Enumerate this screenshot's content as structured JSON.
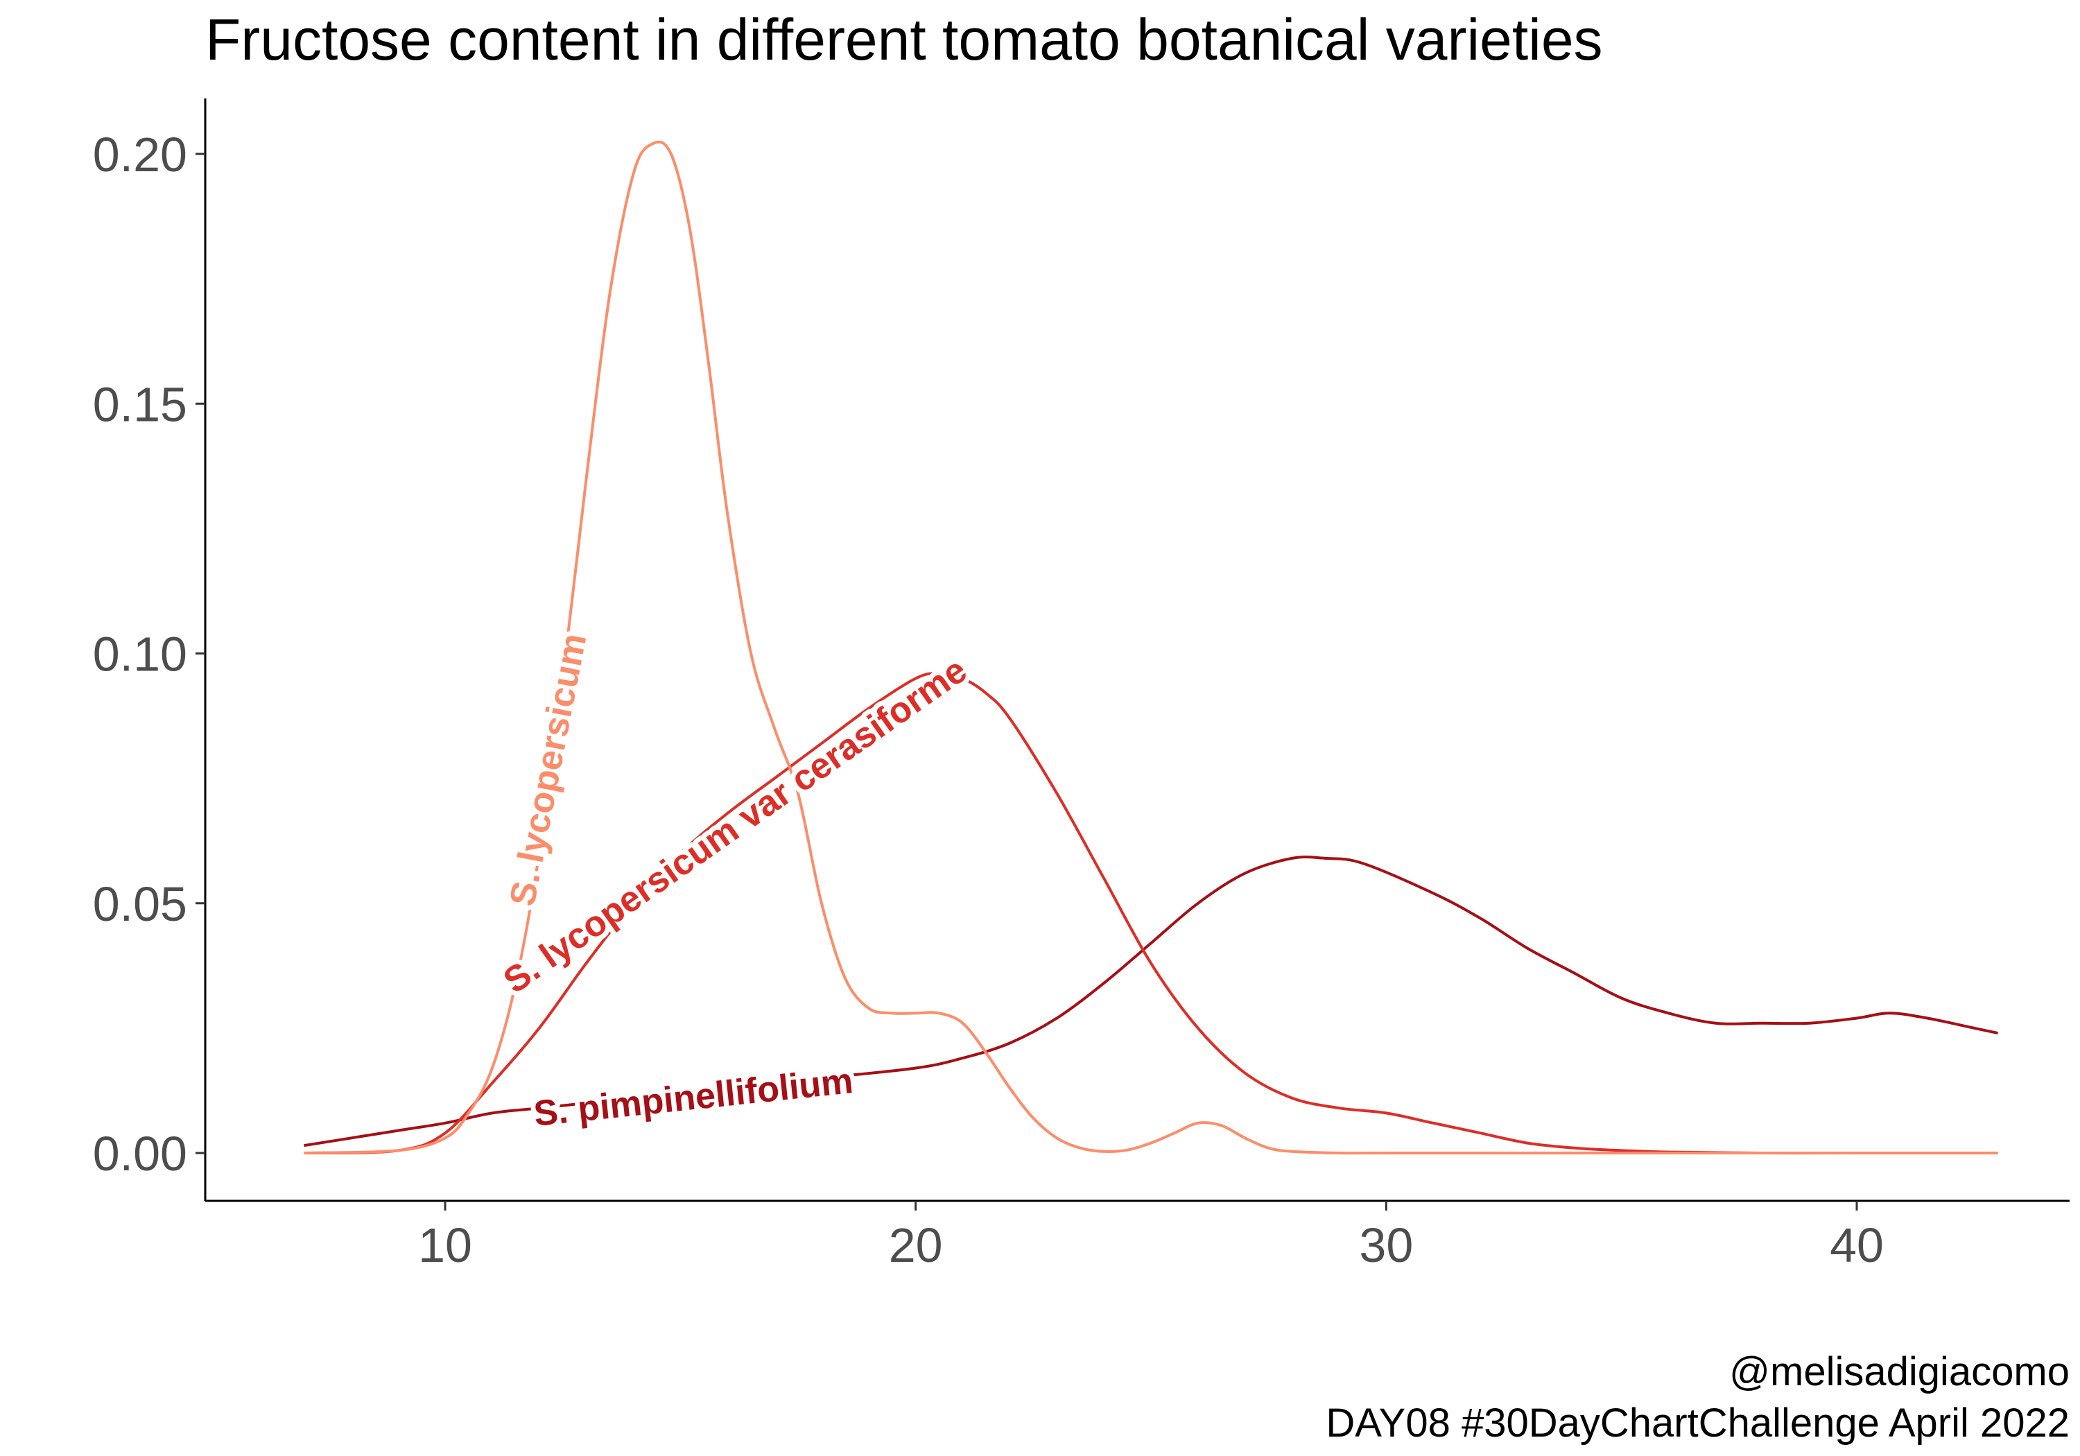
{
  "chart_data": {
    "type": "line",
    "title": "Fructose content in different tomato botanical varieties",
    "xlabel": "",
    "ylabel": "",
    "xlim": [
      5,
      45
    ],
    "ylim": [
      -0.01,
      0.21
    ],
    "x_ticks": [
      10,
      20,
      30,
      40
    ],
    "x_tick_labels": [
      "10",
      "20",
      "30",
      "40"
    ],
    "y_ticks": [
      0,
      0.05,
      0.1,
      0.15,
      0.2
    ],
    "y_tick_labels": [
      "0.00",
      "0.05",
      "0.10",
      "0.15",
      "0.20"
    ],
    "grid": false,
    "legend": "none (direct labels on curves)",
    "series": [
      {
        "name": "S. lycopersicum",
        "color": "#fc8d6a",
        "x": [
          7,
          9,
          10,
          10.5,
          11,
          11.5,
          12,
          12.5,
          13,
          13.5,
          14,
          14.4,
          14.8,
          15.2,
          15.6,
          16,
          16.5,
          17,
          17.5,
          18,
          18.5,
          19,
          19.5,
          20,
          20.5,
          21,
          21.5,
          22,
          22.5,
          23,
          23.5,
          24,
          24.5,
          25,
          25.5,
          26,
          26.5,
          27,
          27.5,
          28,
          29,
          30,
          35,
          40,
          43
        ],
        "y": [
          0,
          0.0005,
          0.003,
          0.008,
          0.017,
          0.034,
          0.06,
          0.095,
          0.135,
          0.172,
          0.196,
          0.202,
          0.2,
          0.185,
          0.158,
          0.128,
          0.1,
          0.085,
          0.072,
          0.05,
          0.035,
          0.029,
          0.028,
          0.028,
          0.028,
          0.026,
          0.02,
          0.013,
          0.007,
          0.003,
          0.001,
          0.0003,
          0.0006,
          0.002,
          0.004,
          0.006,
          0.0055,
          0.003,
          0.001,
          0.0003,
          0,
          0,
          0,
          0,
          0
        ]
      },
      {
        "name": "S. lycopersicum var cerasiforme",
        "color": "#de2d26",
        "x": [
          7,
          9,
          10,
          11,
          12,
          13,
          14,
          15,
          16,
          17,
          18,
          19,
          20,
          20.5,
          21,
          21.5,
          22,
          23,
          24,
          25,
          26,
          27,
          28,
          29,
          30,
          31,
          32,
          33,
          34,
          35,
          36,
          38,
          40,
          43
        ],
        "y": [
          0,
          0.0005,
          0.004,
          0.014,
          0.025,
          0.038,
          0.05,
          0.06,
          0.068,
          0.075,
          0.082,
          0.089,
          0.095,
          0.096,
          0.095,
          0.092,
          0.087,
          0.072,
          0.055,
          0.038,
          0.025,
          0.016,
          0.011,
          0.009,
          0.008,
          0.006,
          0.004,
          0.002,
          0.001,
          0.0005,
          0.0002,
          0,
          0,
          0
        ]
      },
      {
        "name": "S. pimpinellifolium",
        "color": "#a50f15",
        "x": [
          7,
          9,
          10,
          11,
          12,
          14,
          16,
          18,
          20,
          21,
          22,
          23,
          24,
          25,
          26,
          27,
          28,
          28.7,
          29.5,
          31,
          32,
          33,
          34,
          35,
          36,
          37,
          38,
          39,
          40,
          40.7,
          41.5,
          42.5,
          43
        ],
        "y": [
          0.0015,
          0.0045,
          0.006,
          0.008,
          0.009,
          0.011,
          0.013,
          0.015,
          0.017,
          0.019,
          0.022,
          0.027,
          0.034,
          0.042,
          0.05,
          0.056,
          0.059,
          0.059,
          0.058,
          0.052,
          0.047,
          0.041,
          0.036,
          0.031,
          0.028,
          0.026,
          0.026,
          0.026,
          0.027,
          0.028,
          0.027,
          0.025,
          0.024
        ]
      }
    ]
  },
  "caption": {
    "line1": "@melisadigiacomo",
    "line2": "DAY08 #30DayChartChallenge April 2022"
  }
}
